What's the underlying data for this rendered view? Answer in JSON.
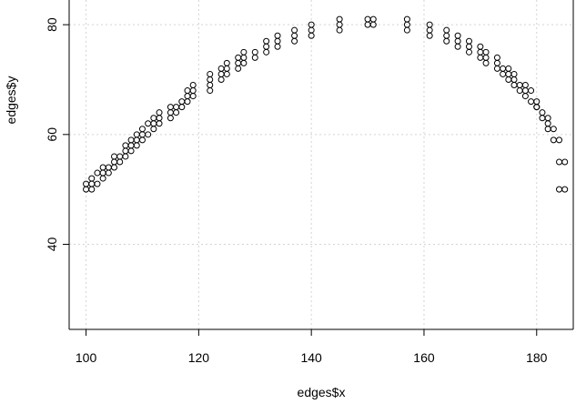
{
  "chart_data": {
    "type": "scatter",
    "title": "",
    "xlabel": "edges$x",
    "ylabel": "edges$y",
    "xlim": [
      97,
      186.5
    ],
    "ylim": [
      24.5,
      84.5
    ],
    "xticks": [
      100,
      120,
      140,
      160,
      180
    ],
    "yticks": [
      40,
      60,
      80
    ],
    "grid": true,
    "marker": "open-circle",
    "colors": {
      "points": "#000000",
      "grid": "#d3d3d3",
      "axes": "#000000",
      "background": "#ffffff"
    },
    "series": [
      {
        "x": [
          100,
          100,
          101,
          101,
          101,
          102,
          102,
          103,
          103,
          103,
          104,
          104,
          105,
          105,
          105,
          106,
          106,
          107,
          107,
          107,
          108,
          108,
          108,
          109,
          109,
          109,
          110,
          110,
          110,
          111,
          111,
          112,
          112,
          112,
          113,
          113,
          113,
          115,
          115,
          115,
          116,
          116,
          117,
          117,
          118,
          118,
          118,
          119,
          119,
          119,
          122,
          122,
          122,
          122,
          124,
          124,
          124,
          125,
          125,
          125,
          127,
          127,
          127,
          128,
          128,
          128,
          130,
          130,
          132,
          132,
          132,
          134,
          134,
          134,
          137,
          137,
          137,
          140,
          140,
          140,
          145,
          145,
          145,
          150,
          150,
          151,
          151,
          157,
          157,
          157,
          161,
          161,
          161,
          164,
          164,
          164,
          166,
          166,
          166,
          168,
          168,
          168,
          170,
          170,
          170,
          171,
          171,
          171,
          173,
          173,
          173,
          174,
          174,
          175,
          175,
          175,
          176,
          176,
          176,
          177,
          177,
          178,
          178,
          178,
          179,
          179,
          180,
          180,
          180,
          181,
          181,
          182,
          182,
          182,
          183,
          183,
          184,
          184,
          184,
          185,
          185
        ],
        "y": [
          50,
          51,
          50,
          51,
          52,
          51,
          53,
          52,
          53,
          54,
          53,
          54,
          54,
          55,
          56,
          55,
          56,
          56,
          57,
          58,
          57,
          58,
          59,
          58,
          59,
          60,
          59,
          60,
          61,
          60,
          62,
          61,
          62,
          63,
          62,
          63,
          64,
          63,
          64,
          65,
          64,
          65,
          65,
          66,
          66,
          67,
          68,
          67,
          68,
          69,
          68,
          69,
          70,
          71,
          70,
          71,
          72,
          71,
          72,
          73,
          72,
          73,
          74,
          73,
          74,
          75,
          74,
          75,
          75,
          76,
          77,
          76,
          77,
          78,
          77,
          78,
          79,
          78,
          79,
          80,
          79,
          80,
          81,
          80,
          81,
          80,
          81,
          79,
          80,
          81,
          78,
          79,
          80,
          77,
          78,
          79,
          76,
          77,
          78,
          75,
          76,
          77,
          74,
          75,
          76,
          73,
          74,
          75,
          72,
          73,
          74,
          71,
          72,
          70,
          71,
          72,
          69,
          70,
          71,
          68,
          69,
          67,
          68,
          69,
          66,
          68,
          65,
          66,
          65,
          63,
          64,
          61,
          62,
          63,
          59,
          61,
          55,
          59,
          50,
          55,
          50
        ]
      }
    ]
  }
}
